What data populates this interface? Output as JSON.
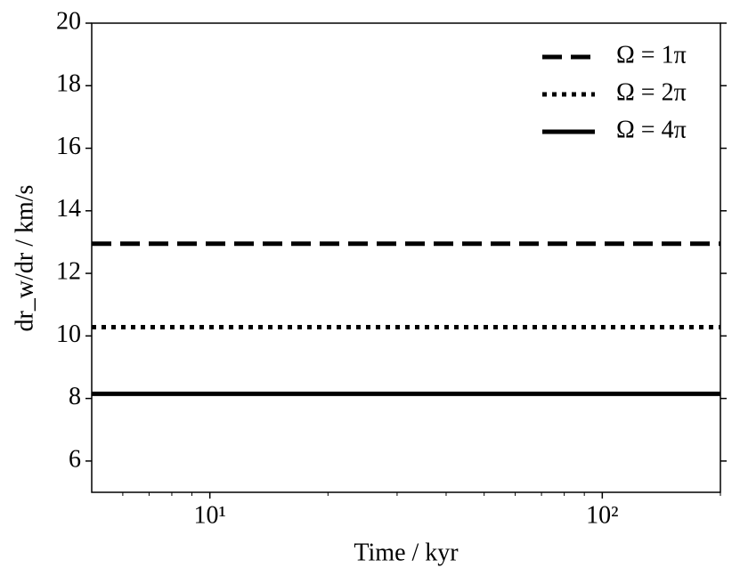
{
  "chart_data": {
    "type": "line",
    "xlabel": "Time / kyr",
    "ylabel": "dr_w/dr / km/s",
    "xscale": "log",
    "xlim": [
      5,
      200
    ],
    "ylim": [
      5,
      20
    ],
    "xticks": [
      {
        "value": 10,
        "label": "10¹"
      },
      {
        "value": 100,
        "label": "10²"
      }
    ],
    "xminorticks": [
      6,
      7,
      8,
      9,
      20,
      30,
      40,
      50,
      60,
      70,
      80,
      90,
      200
    ],
    "yticks": [
      6,
      8,
      10,
      12,
      14,
      16,
      18,
      20
    ],
    "legend": "upper right",
    "series": [
      {
        "name": "Ω = 1π",
        "color": "#000000",
        "linestyle": "dashed",
        "x": [
          5,
          200
        ],
        "values": [
          12.95,
          12.95
        ]
      },
      {
        "name": "Ω = 2π",
        "color": "#000000",
        "linestyle": "dotted",
        "x": [
          5,
          200
        ],
        "values": [
          10.28,
          10.28
        ]
      },
      {
        "name": "Ω = 4π",
        "color": "#000000",
        "linestyle": "solid",
        "x": [
          5,
          200
        ],
        "values": [
          8.15,
          8.15
        ]
      }
    ]
  }
}
